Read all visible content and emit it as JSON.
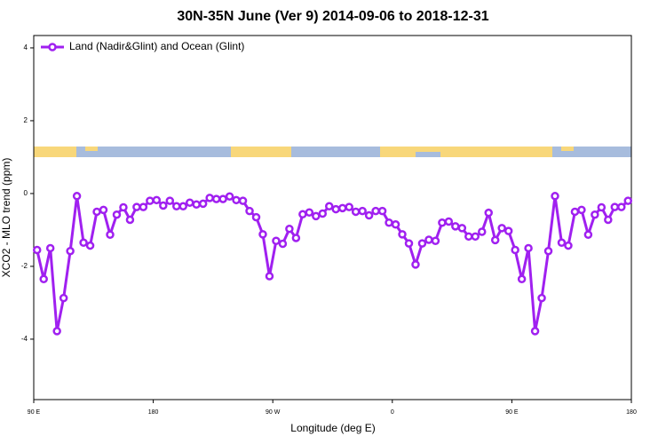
{
  "chart_data": {
    "type": "line",
    "title": "30N-35N June (Ver 9)   2014-09-06 to 2018-12-31",
    "x_label": "Longitude (deg E)",
    "y_label": "XCO2 - MLO trend (ppm)",
    "xlim": [
      90,
      540
    ],
    "ylim": [
      -5.66,
      4.34
    ],
    "xticks": [
      {
        "value": 90,
        "label": "90 E"
      },
      180,
      {
        "value": 270,
        "label": "90 W"
      },
      {
        "value": 360,
        "label": "0"
      },
      {
        "value": 450,
        "label": "90 E"
      },
      {
        "value": 540,
        "label": "180"
      }
    ],
    "yticks": [
      4,
      2,
      0,
      -2,
      -4
    ],
    "legend": "top-left",
    "x": [
      92.5,
      97.5,
      102.5,
      107.5,
      112.5,
      117.5,
      122.5,
      127.5,
      132.5,
      137.5,
      142.5,
      147.5,
      152.5,
      157.5,
      162.5,
      167.5,
      172.5,
      177.5,
      182.5,
      187.5,
      192.5,
      197.5,
      202.5,
      207.5,
      212.5,
      217.5,
      222.5,
      227.5,
      232.5,
      237.5,
      242.5,
      247.5,
      252.5,
      257.5,
      262.5,
      267.5,
      272.5,
      277.5,
      282.5,
      287.5,
      292.5,
      297.5,
      302.5,
      307.5,
      312.5,
      317.5,
      322.5,
      327.5,
      332.5,
      337.5,
      342.5,
      347.5,
      352.5,
      357.5,
      362.5,
      367.5,
      372.5,
      377.5,
      382.5,
      387.5,
      392.5,
      397.5,
      402.5,
      407.5,
      412.5,
      417.5,
      422.5,
      427.5,
      432.5,
      437.5,
      442.5,
      447.5,
      452.5,
      457.5,
      462.5,
      467.5,
      472.5,
      477.5,
      482.5,
      487.5,
      492.5,
      497.5,
      502.5,
      507.5,
      512.5,
      517.5,
      522.5,
      527.5,
      532.5,
      537.5
    ],
    "series": [
      {
        "name": "Land (Nadir&Glint) and Ocean (Glint)",
        "color": "#a020f0",
        "values": [
          -1.55,
          -2.35,
          -1.5,
          -3.78,
          -2.87,
          -1.58,
          -0.07,
          -1.35,
          -1.43,
          -0.5,
          -0.45,
          -1.13,
          -0.58,
          -0.38,
          -0.72,
          -0.37,
          -0.37,
          -0.2,
          -0.18,
          -0.33,
          -0.2,
          -0.35,
          -0.35,
          -0.25,
          -0.3,
          -0.28,
          -0.12,
          -0.15,
          -0.15,
          -0.08,
          -0.18,
          -0.2,
          -0.48,
          -0.65,
          -1.12,
          -2.27,
          -1.3,
          -1.38,
          -0.97,
          -1.22,
          -0.57,
          -0.52,
          -0.62,
          -0.55,
          -0.35,
          -0.43,
          -0.4,
          -0.37,
          -0.5,
          -0.48,
          -0.6,
          -0.48,
          -0.48,
          -0.8,
          -0.85,
          -1.12,
          -1.37,
          -1.95,
          -1.37,
          -1.27,
          -1.3,
          -0.8,
          -0.77,
          -0.9,
          -0.95,
          -1.18,
          -1.18,
          -1.05,
          -0.53,
          -1.28,
          -0.95,
          -1.03,
          -1.55,
          -2.35,
          -1.5,
          -3.78,
          -2.87,
          -1.58,
          -0.07,
          -1.35,
          -1.43,
          -0.5,
          -0.45,
          -1.13,
          -0.58,
          -0.38,
          -0.72,
          -0.37,
          -0.37,
          -0.2
        ]
      }
    ]
  }
}
